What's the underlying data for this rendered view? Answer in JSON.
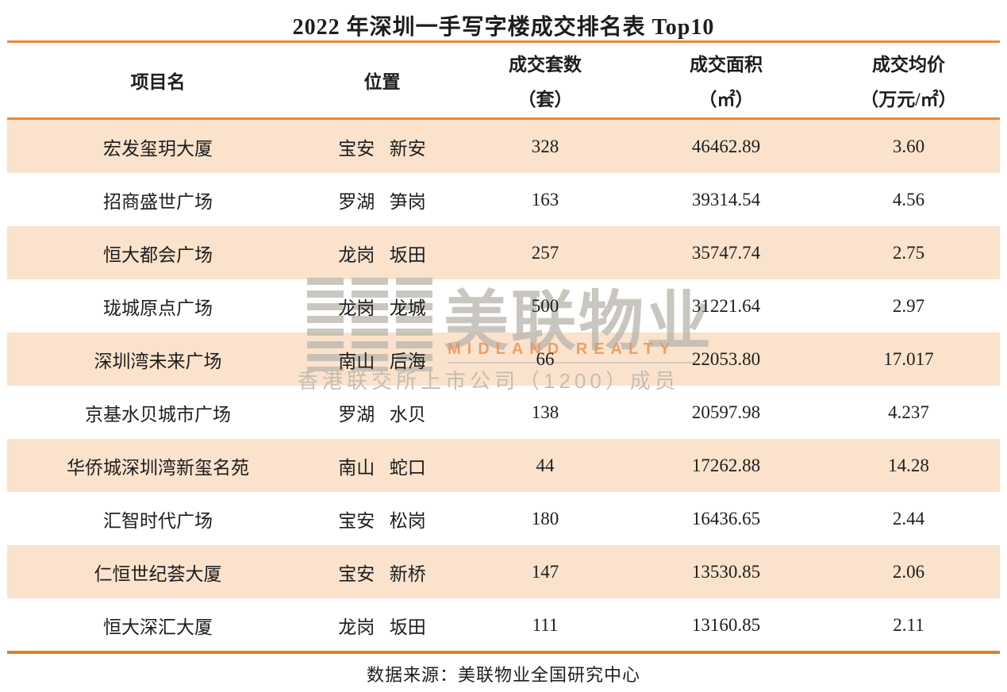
{
  "page": {
    "title": "2022 年深圳一手写字楼成交排名表 Top10",
    "footer": "数据来源：美联物业全国研究中心"
  },
  "watermark": {
    "brand_cn": "美联物业",
    "brand_en": "MIDLAND REALTY",
    "membership": "香港联交所上市公司（1200）成员"
  },
  "colors": {
    "accent_orange": "#ED8A33",
    "row_shade": "#FAE2CC",
    "text": "#1D1D1D",
    "watermark_grey": "#BAB6AE",
    "watermark_orange": "#E6945C"
  },
  "chart_data": {
    "type": "table",
    "title": "2022 年深圳一手写字楼成交排名表 Top10",
    "columns": [
      {
        "line1": "项目名",
        "line2": ""
      },
      {
        "line1": "位置",
        "line2": ""
      },
      {
        "line1": "成交套数",
        "line2": "（套）"
      },
      {
        "line1": "成交面积",
        "line2": "（㎡）"
      },
      {
        "line1": "成交均价",
        "line2": "（万元/㎡）"
      }
    ],
    "rows": [
      {
        "name": "宏发玺玥大厦",
        "location": "宝安 新安",
        "units": "328",
        "area": "46462.89",
        "price": "3.60"
      },
      {
        "name": "招商盛世广场",
        "location": "罗湖 笋岗",
        "units": "163",
        "area": "39314.54",
        "price": "4.56"
      },
      {
        "name": "恒大都会广场",
        "location": "龙岗 坂田",
        "units": "257",
        "area": "35747.74",
        "price": "2.75"
      },
      {
        "name": "珑城原点广场",
        "location": "龙岗 龙城",
        "units": "500",
        "area": "31221.64",
        "price": "2.97"
      },
      {
        "name": "深圳湾未来广场",
        "location": "南山 后海",
        "units": "66",
        "area": "22053.80",
        "price": "17.017"
      },
      {
        "name": "京基水贝城市广场",
        "location": "罗湖 水贝",
        "units": "138",
        "area": "20597.98",
        "price": "4.237"
      },
      {
        "name": "华侨城深圳湾新玺名苑",
        "location": "南山 蛇口",
        "units": "44",
        "area": "17262.88",
        "price": "14.28"
      },
      {
        "name": "汇智时代广场",
        "location": "宝安 松岗",
        "units": "180",
        "area": "16436.65",
        "price": "2.44"
      },
      {
        "name": "仁恒世纪荟大厦",
        "location": "宝安 新桥",
        "units": "147",
        "area": "13530.85",
        "price": "2.06"
      },
      {
        "name": "恒大深汇大厦",
        "location": "龙岗 坂田",
        "units": "111",
        "area": "13160.85",
        "price": "2.11"
      }
    ],
    "source_note": "数据来源：美联物业全国研究中心"
  }
}
